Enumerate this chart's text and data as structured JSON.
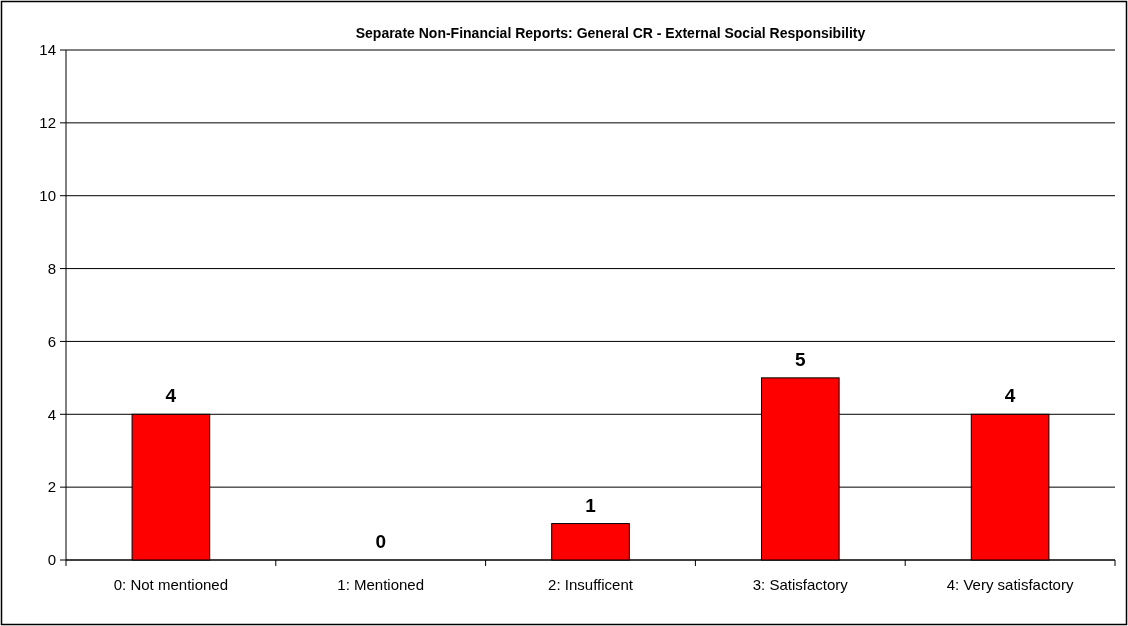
{
  "chart_data": {
    "type": "bar",
    "title": "Separate Non-Financial Reports: General CR - External Social Responsibility",
    "categories": [
      "0: Not mentioned",
      "1: Mentioned",
      "2: Insufficent",
      "3: Satisfactory",
      "4: Very satisfactory"
    ],
    "values": [
      4,
      0,
      1,
      5,
      4
    ],
    "color": "#ff0000",
    "ylim": [
      0,
      14
    ],
    "yticks": [
      0,
      2,
      4,
      6,
      8,
      10,
      12,
      14
    ],
    "grid": "y",
    "data_labels": true
  }
}
